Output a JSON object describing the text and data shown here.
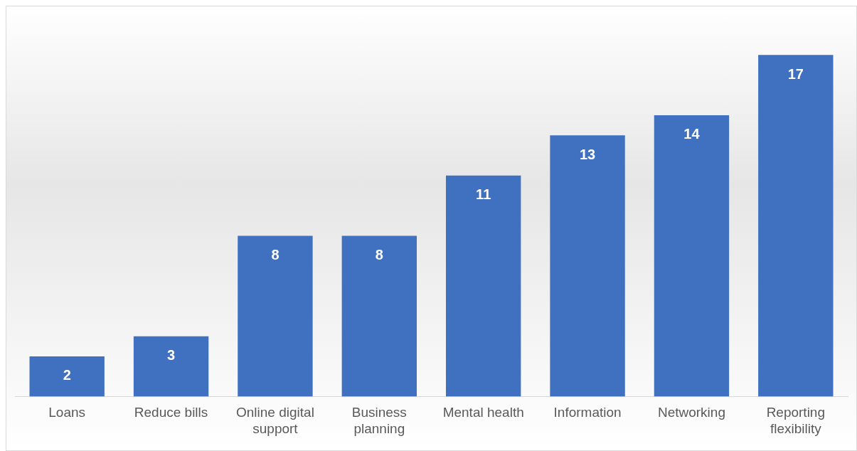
{
  "chart_data": {
    "type": "bar",
    "categories": [
      "Loans",
      "Reduce bills",
      "Online digital support",
      "Business planning",
      "Mental health",
      "Information",
      "Networking",
      "Reporting flexibility"
    ],
    "values": [
      2,
      3,
      8,
      8,
      11,
      13,
      14,
      17
    ],
    "color": "#4070c0",
    "data_labels": true,
    "grid": false,
    "legend": false
  }
}
